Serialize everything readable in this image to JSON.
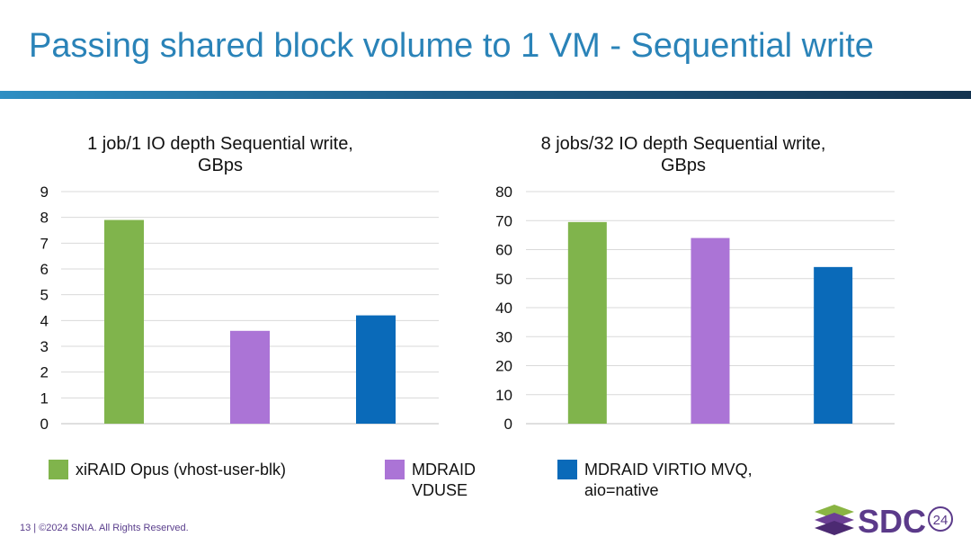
{
  "slide": {
    "title": "Passing shared block volume to 1 VM - Sequential write",
    "footer": "13 | ©2024 SNIA. All Rights Reserved.",
    "logo_text": "SDC",
    "logo_year": "24"
  },
  "colors": {
    "xiraid": "#80b44c",
    "mdraid_vduse": "#ab74d6",
    "mdraid_virtio": "#0a6ab9",
    "title": "#2a83b8"
  },
  "legend": [
    {
      "label_line1": "xiRAID Opus (vhost-user-blk)",
      "label_line2": "",
      "color": "#80b44c"
    },
    {
      "label_line1": "MDRAID",
      "label_line2": "VDUSE",
      "color": "#ab74d6"
    },
    {
      "label_line1": "MDRAID VIRTIO MVQ,",
      "label_line2": "aio=native",
      "color": "#0a6ab9"
    }
  ],
  "chart_data": [
    {
      "type": "bar",
      "title_line1": "1 job/1 IO depth Sequential write,",
      "title_line2": "GBps",
      "categories": [
        "xiRAID Opus (vhost-user-blk)",
        "MDRAID VDUSE",
        "MDRAID VIRTIO MVQ, aio=native"
      ],
      "values": [
        7.9,
        3.6,
        4.2
      ],
      "ylim": [
        0,
        9
      ],
      "yticks": [
        0,
        1,
        2,
        3,
        4,
        5,
        6,
        7,
        8,
        9
      ],
      "grid": true,
      "legend": "bottom"
    },
    {
      "type": "bar",
      "title_line1": "8 jobs/32 IO depth Sequential write,",
      "title_line2": "GBps",
      "categories": [
        "xiRAID Opus (vhost-user-blk)",
        "MDRAID VDUSE",
        "MDRAID VIRTIO MVQ, aio=native"
      ],
      "values": [
        69.5,
        64,
        54
      ],
      "ylim": [
        0,
        80
      ],
      "yticks": [
        0,
        10,
        20,
        30,
        40,
        50,
        60,
        70,
        80
      ],
      "grid": true,
      "legend": "bottom"
    }
  ]
}
